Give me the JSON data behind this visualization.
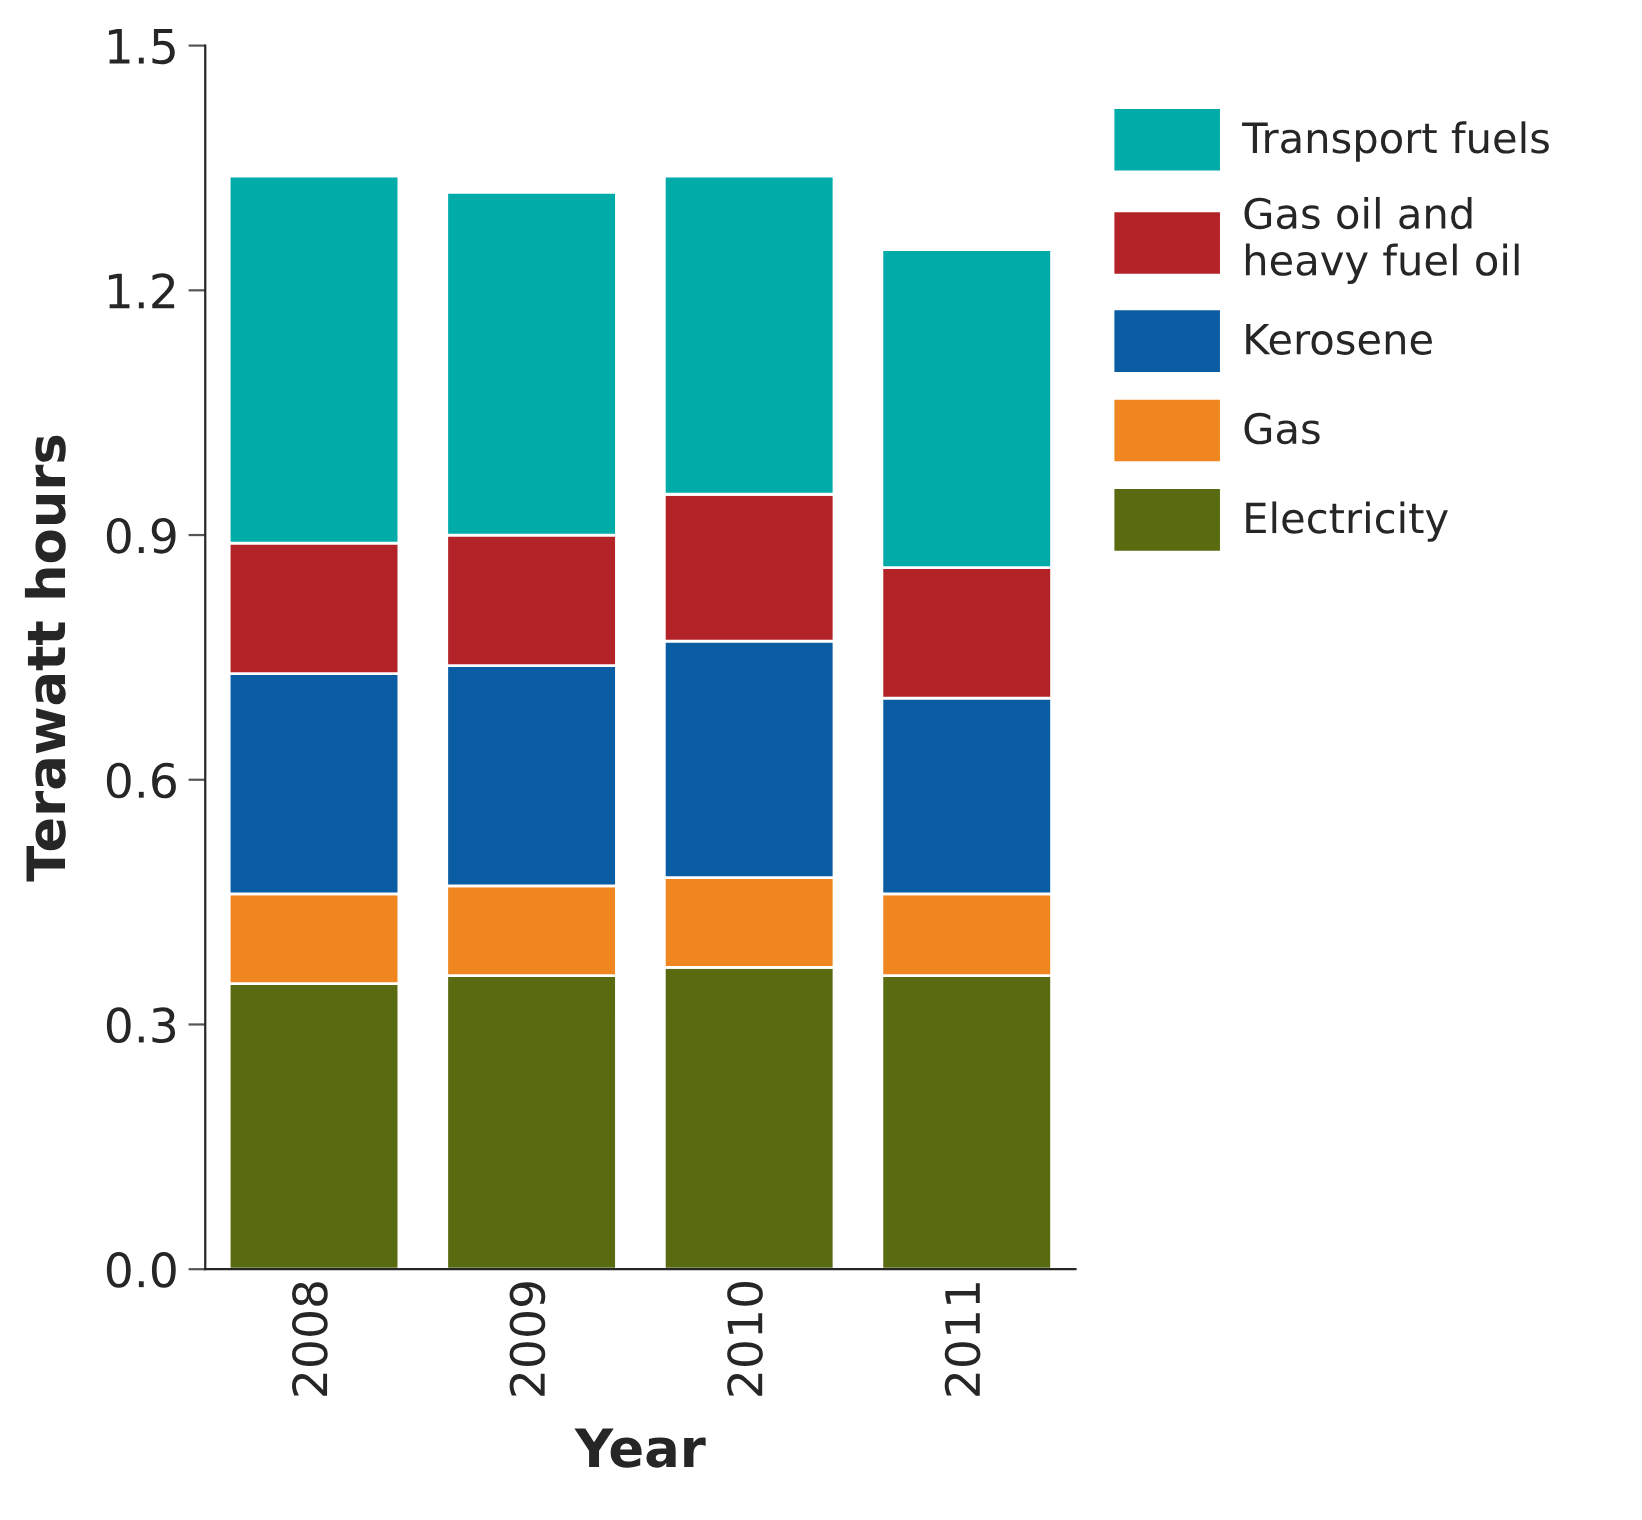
{
  "chart_data": {
    "type": "bar",
    "stacked": true,
    "xlabel": "Year",
    "ylabel": "Terawatt hours",
    "categories": [
      "2008",
      "2009",
      "2010",
      "2011"
    ],
    "series": [
      {
        "name": "Electricity",
        "color": "#586b10",
        "values": [
          0.35,
          0.36,
          0.37,
          0.36
        ]
      },
      {
        "name": "Gas",
        "color": "#f0861f",
        "values": [
          0.11,
          0.11,
          0.11,
          0.1
        ]
      },
      {
        "name": "Kerosene",
        "color": "#0a5ca3",
        "values": [
          0.27,
          0.27,
          0.29,
          0.24
        ]
      },
      {
        "name": "Gas oil and\nheavy fuel oil",
        "color": "#b22226",
        "values": [
          0.16,
          0.16,
          0.18,
          0.16
        ]
      },
      {
        "name": "Transport fuels",
        "color": "#00aba8",
        "values": [
          0.45,
          0.42,
          0.39,
          0.39
        ]
      }
    ],
    "ylim": [
      0,
      1.5
    ],
    "yticks": [
      {
        "value": 0,
        "label": "0.0"
      },
      0.3,
      0.6,
      0.9,
      1.2,
      1.5
    ],
    "grid": false,
    "legend": "right"
  }
}
